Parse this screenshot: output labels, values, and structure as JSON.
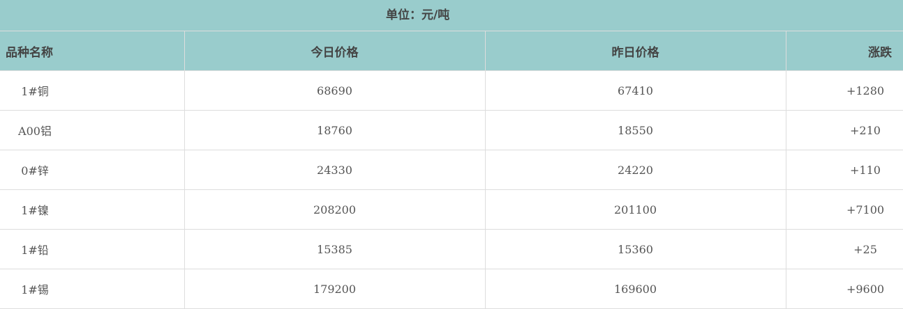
{
  "unit_label": "单位：元/吨",
  "headers": [
    "品种名称",
    "今日价格",
    "昨日价格",
    "涨跌"
  ],
  "rows": [
    {
      "name": "1#铜",
      "today": "68690",
      "yesterday": "67410",
      "change": "+1280"
    },
    {
      "name": "A00铝",
      "today": "18760",
      "yesterday": "18550",
      "change": "+210"
    },
    {
      "name": "0#锌",
      "today": "24330",
      "yesterday": "24220",
      "change": "+110"
    },
    {
      "name": "1#镍",
      "today": "208200",
      "yesterday": "201100",
      "change": "+7100"
    },
    {
      "name": "1#铅",
      "today": "15385",
      "yesterday": "15360",
      "change": "+25"
    },
    {
      "name": "1#锡",
      "today": "179200",
      "yesterday": "169600",
      "change": "+9600"
    }
  ],
  "colors": {
    "header_bg": "#99cccc",
    "border": "#dddddd",
    "text": "#555555"
  }
}
